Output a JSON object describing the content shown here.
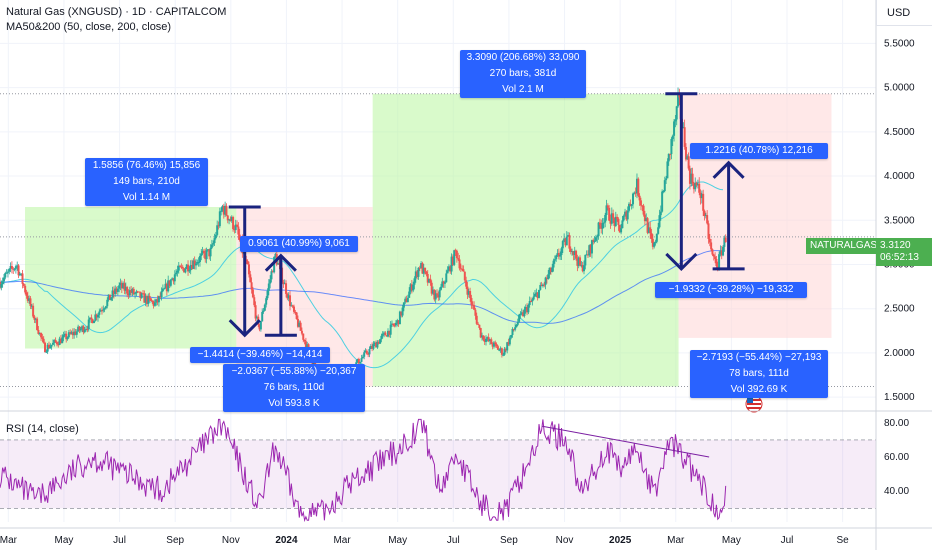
{
  "header": {
    "symbol_line": "Natural Gas (XNGUSD) · 1D · CAPITALCOM",
    "ma_line": "MA50&200 (50, close, 200, close)",
    "rsi_line": "RSI (14, close)",
    "currency_button": "USD"
  },
  "price_tag": {
    "symbol": "NATURALGAS",
    "price": "3.3120",
    "countdown": "06:52:13",
    "color": "#4caf50"
  },
  "measurements": [
    {
      "lines": [
        "1.5856 (76.46%) 15,856",
        "149 bars, 210d",
        "Vol 1.14 M"
      ],
      "direction": "up"
    },
    {
      "lines": [
        "3.3090 (206.68%) 33,090",
        "270 bars, 381d",
        "Vol 2.1 M"
      ],
      "direction": "up"
    },
    {
      "lines": [
        "0.9061 (40.99%) 9,061"
      ],
      "direction": "up"
    },
    {
      "lines": [
        "−1.4414 (−39.46%) −14,414"
      ],
      "direction": "down"
    },
    {
      "lines": [
        "−2.0367 (−55.88%) −20,367",
        "76 bars, 110d",
        "Vol 593.8 K"
      ],
      "direction": "down"
    },
    {
      "lines": [
        "1.2216 (40.78%) 12,216"
      ],
      "direction": "up"
    },
    {
      "lines": [
        "−1.9332 (−39.28%) −19,332"
      ],
      "direction": "down"
    },
    {
      "lines": [
        "−2.7193 (−55.44%) −27,193",
        "78 bars, 111d",
        "Vol 392.69 K"
      ],
      "direction": "down"
    }
  ],
  "colors": {
    "up": "#26a69a",
    "down": "#ef5350",
    "ma50": "#4dd0e1",
    "ma200": "#2962ff",
    "rsi": "#9c27b0",
    "measure_box": "#2962ff",
    "arrows": "#1a237e"
  },
  "chart_data": [
    {
      "type": "candlestick",
      "title": "Natural Gas (XNGUSD) · 1D · CAPITALCOM",
      "y_ticks": [
        "1.5000",
        "2.0000",
        "2.5000",
        "3.0000",
        "3.5000",
        "4.0000",
        "4.5000",
        "5.0000",
        "5.5000"
      ],
      "ylim": [
        1.4,
        5.9
      ],
      "x_ticks": [
        "Mar",
        "May",
        "Jul",
        "Sep",
        "Nov",
        "2024",
        "Mar",
        "May",
        "Jul",
        "Sep",
        "Nov",
        "2025",
        "Mar",
        "May",
        "Jul",
        "Se"
      ],
      "x_tick_months": [
        0,
        2,
        4,
        6,
        8,
        10,
        12,
        14,
        16,
        18,
        20,
        22,
        24,
        26,
        28,
        30
      ],
      "xlim_months": [
        -0.3,
        31.2
      ],
      "last_price": 3.312,
      "grid": true,
      "key_points": [
        {
          "m": -0.3,
          "v": 2.8
        },
        {
          "m": 0.3,
          "v": 3.0
        },
        {
          "m": 1.3,
          "v": 2.05
        },
        {
          "m": 2.8,
          "v": 2.3
        },
        {
          "m": 4.0,
          "v": 2.75
        },
        {
          "m": 5.3,
          "v": 2.55
        },
        {
          "m": 6.0,
          "v": 2.9
        },
        {
          "m": 7.3,
          "v": 3.15
        },
        {
          "m": 7.7,
          "v": 3.65
        },
        {
          "m": 8.2,
          "v": 3.4
        },
        {
          "m": 8.6,
          "v": 2.95
        },
        {
          "m": 9.0,
          "v": 2.25
        },
        {
          "m": 9.6,
          "v": 3.1
        },
        {
          "m": 10.2,
          "v": 2.5
        },
        {
          "m": 11.3,
          "v": 1.62
        },
        {
          "m": 12.2,
          "v": 1.78
        },
        {
          "m": 13.2,
          "v": 2.1
        },
        {
          "m": 14.0,
          "v": 2.35
        },
        {
          "m": 14.8,
          "v": 3.0
        },
        {
          "m": 15.4,
          "v": 2.6
        },
        {
          "m": 16.1,
          "v": 3.15
        },
        {
          "m": 17.0,
          "v": 2.2
        },
        {
          "m": 17.8,
          "v": 2.0
        },
        {
          "m": 18.3,
          "v": 2.35
        },
        {
          "m": 19.3,
          "v": 2.8
        },
        {
          "m": 20.1,
          "v": 3.3
        },
        {
          "m": 20.6,
          "v": 2.95
        },
        {
          "m": 21.5,
          "v": 3.6
        },
        {
          "m": 22.0,
          "v": 3.4
        },
        {
          "m": 22.6,
          "v": 3.9
        },
        {
          "m": 23.2,
          "v": 3.15
        },
        {
          "m": 23.8,
          "v": 4.3
        },
        {
          "m": 24.1,
          "v": 4.85
        },
        {
          "m": 24.5,
          "v": 4.0
        },
        {
          "m": 24.9,
          "v": 3.8
        },
        {
          "m": 25.3,
          "v": 3.1
        },
        {
          "m": 25.5,
          "v": 3.0
        },
        {
          "m": 25.8,
          "v": 3.31
        }
      ],
      "series": [
        {
          "name": "MA50",
          "color": "#4dd0e1"
        },
        {
          "name": "MA200",
          "color": "#2962ff"
        }
      ]
    },
    {
      "type": "line",
      "title": "RSI (14, close)",
      "y_ticks": [
        "40.00",
        "60.00",
        "80.00"
      ],
      "ylim": [
        22,
        84
      ],
      "bands": [
        30,
        70
      ],
      "color": "#9c27b0",
      "key_points": [
        {
          "m": -0.3,
          "v": 50
        },
        {
          "m": 1.0,
          "v": 35
        },
        {
          "m": 3.0,
          "v": 60
        },
        {
          "m": 5.5,
          "v": 40
        },
        {
          "m": 7.7,
          "v": 79
        },
        {
          "m": 9.0,
          "v": 30
        },
        {
          "m": 9.6,
          "v": 66
        },
        {
          "m": 10.5,
          "v": 26
        },
        {
          "m": 11.3,
          "v": 27
        },
        {
          "m": 12.3,
          "v": 45
        },
        {
          "m": 14.0,
          "v": 64
        },
        {
          "m": 14.9,
          "v": 80
        },
        {
          "m": 15.5,
          "v": 40
        },
        {
          "m": 16.1,
          "v": 62
        },
        {
          "m": 17.0,
          "v": 32
        },
        {
          "m": 17.9,
          "v": 28
        },
        {
          "m": 19.2,
          "v": 76
        },
        {
          "m": 20.1,
          "v": 70
        },
        {
          "m": 20.6,
          "v": 38
        },
        {
          "m": 21.5,
          "v": 65
        },
        {
          "m": 22.0,
          "v": 52
        },
        {
          "m": 22.6,
          "v": 66
        },
        {
          "m": 23.2,
          "v": 38
        },
        {
          "m": 23.8,
          "v": 70
        },
        {
          "m": 24.2,
          "v": 62
        },
        {
          "m": 24.8,
          "v": 46
        },
        {
          "m": 25.3,
          "v": 34
        },
        {
          "m": 25.5,
          "v": 30
        },
        {
          "m": 25.8,
          "v": 41
        }
      ]
    }
  ]
}
